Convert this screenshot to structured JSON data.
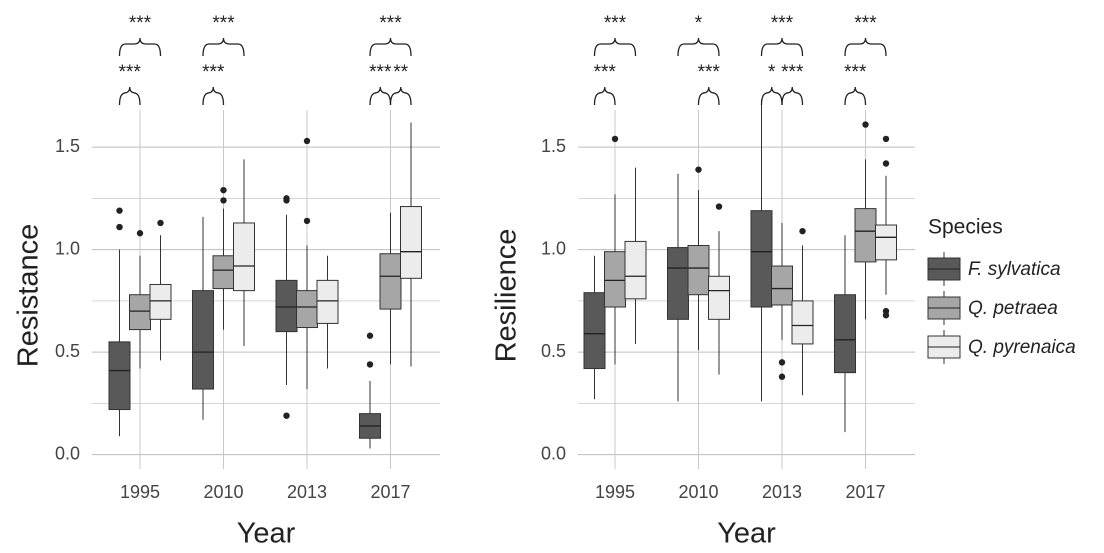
{
  "chart_data": [
    {
      "type": "box",
      "ylabel": "Resistance",
      "xlabel": "Year",
      "categories": [
        "1995",
        "2010",
        "2013",
        "2017"
      ],
      "ylim": [
        -0.07,
        1.72
      ],
      "yticks": [
        {
          "value": 0,
          "label": "0.0"
        },
        0.5,
        {
          "value": 1,
          "label": "1.0"
        },
        1.5
      ],
      "minor_yticks": [
        0.25,
        0.75,
        1.25
      ],
      "grid": true,
      "annotations": [
        "***",
        "***",
        "***",
        "***",
        "***",
        "***",
        "**"
      ],
      "series": [
        {
          "color": "#595959",
          "values": [
            {
              "min": 0.09,
              "q1": 0.22,
              "median": 0.41,
              "q3": 0.55,
              "max": 1.0,
              "outliers": [
                1.11,
                1.19
              ]
            },
            {
              "min": 0.17,
              "q1": 0.32,
              "median": 0.5,
              "q3": 0.8,
              "max": 1.16
            },
            {
              "min": 0.34,
              "q1": 0.6,
              "median": 0.72,
              "q3": 0.85,
              "max": 1.17,
              "outliers": [
                0.19,
                1.24,
                1.25
              ]
            },
            {
              "min": 0.03,
              "q1": 0.08,
              "median": 0.14,
              "q3": 0.2,
              "max": 0.36,
              "outliers": [
                0.44,
                0.58
              ]
            }
          ]
        },
        {
          "color": "#a6a6a6",
          "values": [
            {
              "min": 0.42,
              "q1": 0.61,
              "median": 0.7,
              "q3": 0.78,
              "max": 0.97,
              "outliers": [
                1.08
              ]
            },
            {
              "min": 0.61,
              "q1": 0.81,
              "median": 0.9,
              "q3": 0.97,
              "max": 1.2,
              "outliers": [
                1.24,
                1.29
              ]
            },
            {
              "min": 0.32,
              "q1": 0.62,
              "median": 0.72,
              "q3": 0.8,
              "max": 1.02,
              "outliers": [
                1.14,
                1.53
              ]
            },
            {
              "min": 0.44,
              "q1": 0.71,
              "median": 0.87,
              "q3": 0.98,
              "max": 1.18
            }
          ]
        },
        {
          "color": "#ececec",
          "values": [
            {
              "min": 0.46,
              "q1": 0.66,
              "median": 0.75,
              "q3": 0.83,
              "max": 1.07,
              "outliers": [
                1.13
              ]
            },
            {
              "min": 0.53,
              "q1": 0.8,
              "median": 0.92,
              "q3": 1.13,
              "max": 1.44
            },
            {
              "min": 0.42,
              "q1": 0.64,
              "median": 0.75,
              "q3": 0.85,
              "max": 0.97
            },
            {
              "min": 0.43,
              "q1": 0.86,
              "median": 0.99,
              "q3": 1.21,
              "max": 1.62
            }
          ]
        }
      ]
    },
    {
      "type": "box",
      "ylabel": "Resilience",
      "xlabel": "Year",
      "categories": [
        "1995",
        "2010",
        "2013",
        "2017"
      ],
      "ylim": [
        -0.07,
        1.72
      ],
      "yticks": [
        {
          "value": 0,
          "label": "0.0"
        },
        0.5,
        {
          "value": 1,
          "label": "1.0"
        },
        1.5
      ],
      "minor_yticks": [
        0.25,
        0.75,
        1.25
      ],
      "grid": true,
      "annotations": [
        "***",
        "***",
        "*",
        "***",
        "***",
        "*",
        "***",
        "***",
        "***"
      ],
      "legend_title": "Species",
      "legend": "right",
      "series": [
        {
          "name": "F. sylvatica",
          "color": "#595959",
          "values": [
            {
              "min": 0.27,
              "q1": 0.42,
              "median": 0.59,
              "q3": 0.79,
              "max": 0.97
            },
            {
              "min": 0.26,
              "q1": 0.66,
              "median": 0.91,
              "q3": 1.01,
              "max": 1.37
            },
            {
              "min": 0.26,
              "q1": 0.72,
              "median": 0.99,
              "q3": 1.19,
              "max": 1.73
            },
            {
              "min": 0.11,
              "q1": 0.4,
              "median": 0.56,
              "q3": 0.78,
              "max": 1.07
            }
          ]
        },
        {
          "name": "Q. petraea",
          "color": "#a6a6a6",
          "values": [
            {
              "min": 0.44,
              "q1": 0.72,
              "median": 0.85,
              "q3": 0.99,
              "max": 1.27,
              "outliers": [
                1.54
              ]
            },
            {
              "min": 0.51,
              "q1": 0.78,
              "median": 0.91,
              "q3": 1.02,
              "max": 1.29,
              "outliers": [
                1.39
              ]
            },
            {
              "min": 0.56,
              "q1": 0.73,
              "median": 0.81,
              "q3": 0.92,
              "max": 1.13,
              "outliers": [
                0.38,
                0.45
              ]
            },
            {
              "min": 0.66,
              "q1": 0.94,
              "median": 1.09,
              "q3": 1.2,
              "max": 1.44,
              "outliers": [
                1.61
              ]
            }
          ]
        },
        {
          "name": "Q. pyrenaica",
          "color": "#ececec",
          "values": [
            {
              "min": 0.54,
              "q1": 0.76,
              "median": 0.87,
              "q3": 1.04,
              "max": 1.4
            },
            {
              "min": 0.39,
              "q1": 0.66,
              "median": 0.8,
              "q3": 0.87,
              "max": 1.09,
              "outliers": [
                1.21
              ]
            },
            {
              "min": 0.29,
              "q1": 0.54,
              "median": 0.63,
              "q3": 0.75,
              "max": 1.02,
              "outliers": [
                1.09
              ]
            },
            {
              "min": 0.78,
              "q1": 0.95,
              "median": 1.06,
              "q3": 1.12,
              "max": 1.36,
              "outliers": [
                0.68,
                0.7,
                1.42,
                1.54
              ]
            }
          ]
        }
      ]
    }
  ]
}
